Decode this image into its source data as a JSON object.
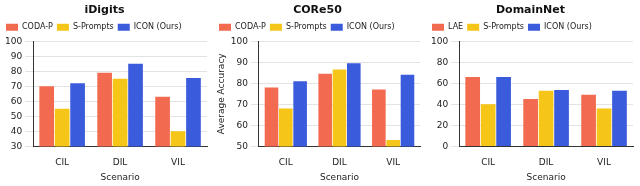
{
  "chart_data": [
    {
      "type": "bar",
      "title": "iDigits",
      "x_label": "Scenario",
      "categories": [
        "CIL",
        "DIL",
        "VIL"
      ],
      "series": [
        {
          "name": "CODA-P",
          "color": "#f26b50",
          "values": [
            70,
            79,
            63
          ]
        },
        {
          "name": "S-Prompts",
          "color": "#f5c518",
          "values": [
            55,
            75,
            40
          ]
        },
        {
          "name": "ICON (Ours)",
          "color": "#3a5bdb",
          "values": [
            72,
            85,
            75.5
          ]
        }
      ],
      "ylim": [
        30,
        100
      ],
      "yticks": [
        30,
        40,
        50,
        60,
        70,
        80,
        90,
        100
      ],
      "grid": true,
      "legend": "upper left"
    },
    {
      "type": "bar",
      "title": "CORe50",
      "x_label": "Scenario",
      "y_label": "Average Accuracy",
      "categories": [
        "CIL",
        "DIL",
        "VIL"
      ],
      "series": [
        {
          "name": "CODA-P",
          "color": "#f26b50",
          "values": [
            78,
            84.5,
            77
          ]
        },
        {
          "name": "S-Prompts",
          "color": "#f5c518",
          "values": [
            68,
            86.5,
            53
          ]
        },
        {
          "name": "ICON (Ours)",
          "color": "#3a5bdb",
          "values": [
            81,
            89.5,
            84
          ]
        }
      ],
      "ylim": [
        50,
        100
      ],
      "yticks": [
        50,
        60,
        70,
        80,
        90,
        100
      ],
      "grid": true,
      "legend": "upper left"
    },
    {
      "type": "bar",
      "title": "DomainNet",
      "x_label": "Scenario",
      "categories": [
        "CIL",
        "DIL",
        "VIL"
      ],
      "series": [
        {
          "name": "LAE",
          "color": "#f26b50",
          "values": [
            66,
            45,
            49
          ]
        },
        {
          "name": "S-Prompts",
          "color": "#f5c518",
          "values": [
            40,
            53,
            36
          ]
        },
        {
          "name": "ICON (Ours)",
          "color": "#3a5bdb",
          "values": [
            66,
            53.5,
            53
          ]
        }
      ],
      "ylim": [
        0,
        100
      ],
      "yticks": [
        0,
        20,
        40,
        60,
        80,
        100
      ],
      "grid": true,
      "legend": "upper left"
    }
  ]
}
